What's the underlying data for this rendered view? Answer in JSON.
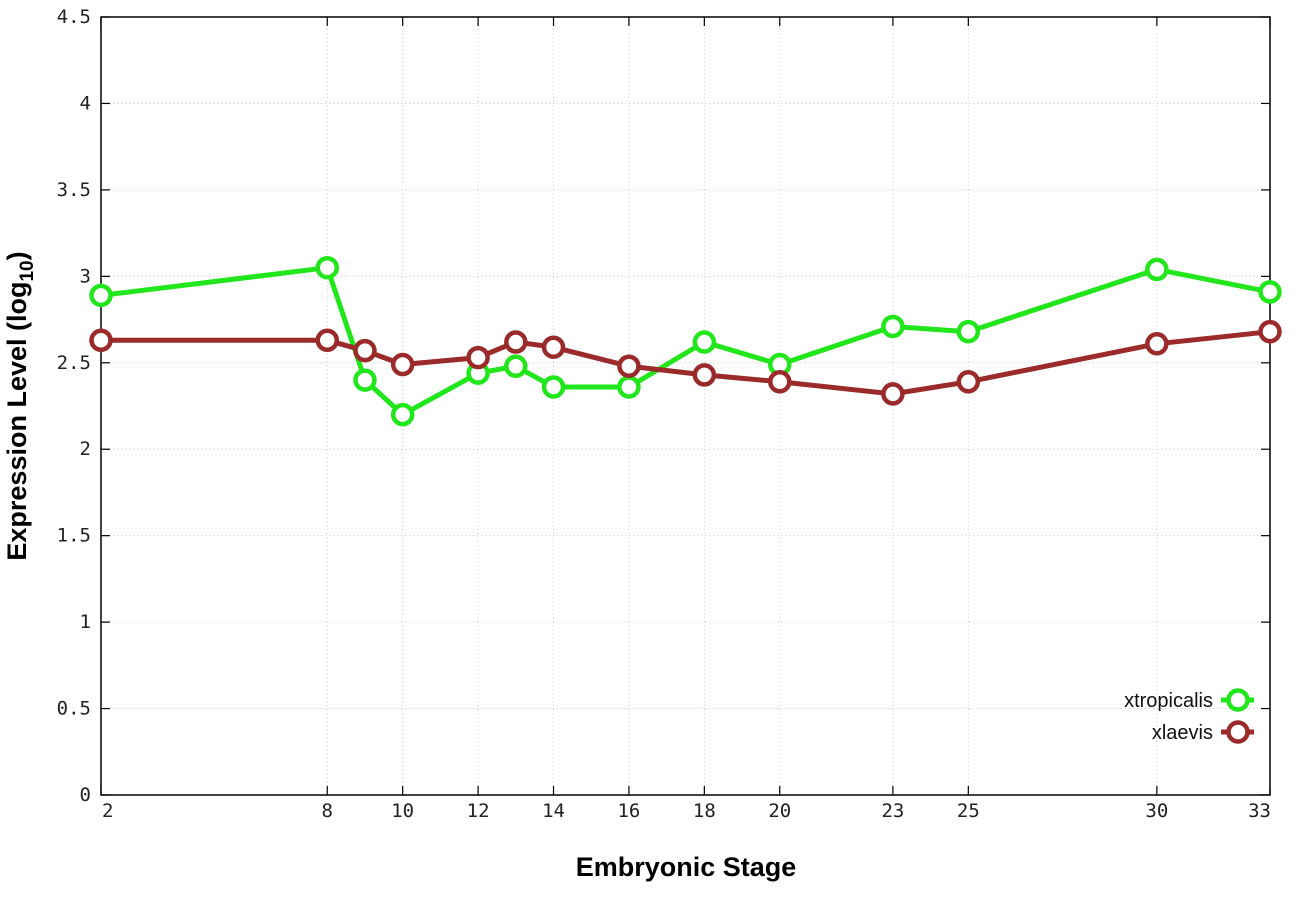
{
  "chart_data": {
    "type": "line",
    "xlabel": "Embryonic Stage",
    "ylabel_main": "Expression Level (log",
    "ylabel_sub": "10",
    "ylabel_close": ")",
    "xlim": [
      2,
      33
    ],
    "ylim": [
      0,
      4.5
    ],
    "x_ticks": [
      2,
      8,
      10,
      12,
      14,
      16,
      18,
      20,
      23,
      25,
      30,
      33
    ],
    "y_ticks": [
      0,
      0.5,
      1,
      1.5,
      2,
      2.5,
      3,
      3.5,
      4,
      4.5
    ],
    "y_tick_labels": [
      "0",
      "0.5",
      "1",
      "1.5",
      "2",
      "2.5",
      "3",
      "3.5",
      "4",
      "4.5"
    ],
    "grid": true,
    "legend_position": "bottom-right",
    "marker": "open-circle",
    "series": [
      {
        "name": "xtropicalis",
        "color": "#22e61c",
        "x": [
          2,
          8,
          9,
          10,
          12,
          13,
          14,
          16,
          18,
          20,
          23,
          25,
          30,
          33
        ],
        "y": [
          2.89,
          3.05,
          2.4,
          2.2,
          2.44,
          2.48,
          2.36,
          2.36,
          2.62,
          2.49,
          2.71,
          2.68,
          3.04,
          2.91
        ]
      },
      {
        "name": "xlaevis",
        "color": "#9b2a2a",
        "x": [
          2,
          8,
          9,
          10,
          12,
          13,
          14,
          16,
          18,
          20,
          23,
          25,
          30,
          33
        ],
        "y": [
          2.63,
          2.63,
          2.57,
          2.49,
          2.53,
          2.62,
          2.59,
          2.48,
          2.43,
          2.39,
          2.32,
          2.39,
          2.61,
          2.68
        ]
      }
    ]
  }
}
